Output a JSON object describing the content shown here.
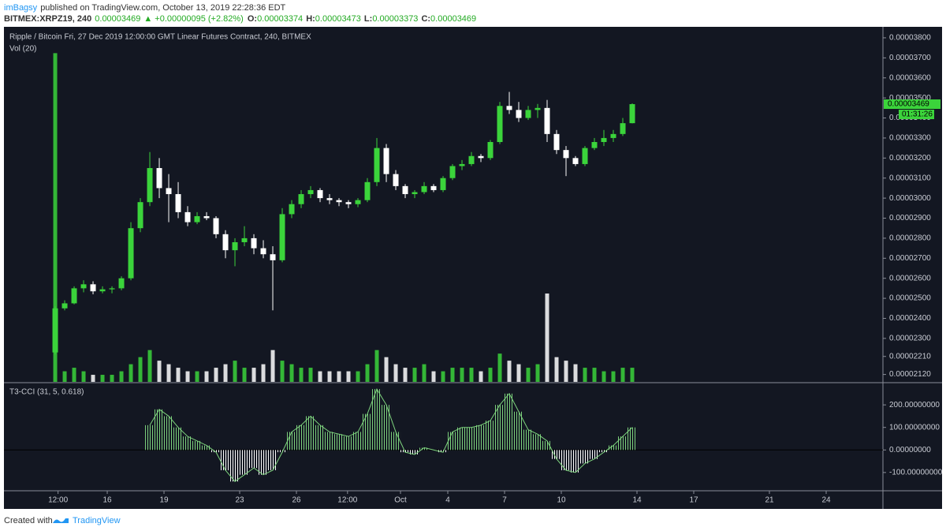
{
  "header": {
    "user": "imBagsy",
    "published": "published on TradingView.com, October 13, 2019 22:28:36 EDT",
    "symbol": "BITMEX:XRPZ19, 240",
    "last": "0.00003469",
    "change": "+0.00000095 (+2.82%)",
    "ohlc": [
      {
        "label": "O:",
        "value": "0.00003374"
      },
      {
        "label": "H:",
        "value": "0.00003473"
      },
      {
        "label": "L:",
        "value": "0.00003373"
      },
      {
        "label": "C:",
        "value": "0.00003469"
      }
    ]
  },
  "chart_data": [
    {
      "type": "candlestick",
      "title": "Ripple / Bitcoin Fri, 27 Dec 2019 12:00:00 GMT Linear Futures Contract, 240, BITMEX",
      "volume_label": "Vol (20)",
      "last_price_label": "0.00003469",
      "countdown_label": "01:31:26",
      "up_color": "#3bd43b",
      "down_color": "#ffffff",
      "x": [
        13.25,
        13.75,
        14.25,
        14.75,
        15.25,
        15.75,
        16.25,
        16.75,
        17.25,
        17.75,
        18.25,
        18.75,
        19.25,
        19.75,
        20.25,
        20.75,
        21.25,
        21.75,
        22.25,
        22.75,
        23.25,
        23.75,
        24.25,
        24.75,
        25.25,
        25.75,
        26.25,
        26.75,
        27.25,
        27.75,
        28.25,
        28.75,
        29.25,
        29.75,
        30.25,
        30.75,
        31.25,
        31.75,
        32.25,
        32.75,
        33.25,
        33.75,
        34.25,
        34.75,
        35.25,
        35.75,
        36.25,
        36.75,
        37.25,
        37.75,
        38.25,
        38.75,
        39.25,
        39.75,
        40.25,
        40.75,
        41.25,
        41.75,
        42.25,
        42.75,
        43.25,
        43.75
      ],
      "open": [
        2.23e-05,
        2.45e-05,
        2.475e-05,
        2.55e-05,
        2.57e-05,
        2.535e-05,
        2.545e-05,
        2.55e-05,
        2.6e-05,
        2.85e-05,
        2.98e-05,
        3.15e-05,
        3.05e-05,
        3.02e-05,
        2.93e-05,
        2.88e-05,
        2.91e-05,
        2.9e-05,
        2.82e-05,
        2.74e-05,
        2.78e-05,
        2.8e-05,
        2.75e-05,
        2.72e-05,
        2.69e-05,
        2.92e-05,
        2.97e-05,
        3.02e-05,
        3.04e-05,
        3e-05,
        2.99e-05,
        2.98e-05,
        2.97e-05,
        2.99e-05,
        3.08e-05,
        3.25e-05,
        3.12e-05,
        3.06e-05,
        3.02e-05,
        3.03e-05,
        3.06e-05,
        3.04e-05,
        3.1e-05,
        3.16e-05,
        3.17e-05,
        3.21e-05,
        3.2e-05,
        3.28e-05,
        3.46e-05,
        3.44e-05,
        3.4e-05,
        3.44e-05,
        3.45e-05,
        3.32e-05,
        3.24e-05,
        3.2e-05,
        3.17e-05,
        3.25e-05,
        3.28e-05,
        3.3e-05,
        3.32e-05,
        3.374e-05
      ],
      "high": [
        2.46e-05,
        2.49e-05,
        2.56e-05,
        2.59e-05,
        2.585e-05,
        2.56e-05,
        2.56e-05,
        2.61e-05,
        2.88e-05,
        3e-05,
        3.23e-05,
        3.2e-05,
        3.12e-05,
        3.08e-05,
        2.96e-05,
        2.93e-05,
        2.93e-05,
        2.91e-05,
        2.84e-05,
        2.8e-05,
        2.86e-05,
        2.82e-05,
        2.79e-05,
        2.76e-05,
        2.95e-05,
        2.99e-05,
        3.04e-05,
        3.06e-05,
        3.05e-05,
        3.02e-05,
        3e-05,
        2.99e-05,
        3e-05,
        3.1e-05,
        3.3e-05,
        3.27e-05,
        3.14e-05,
        3.07e-05,
        3.04e-05,
        3.08e-05,
        3.07e-05,
        3.11e-05,
        3.17e-05,
        3.19e-05,
        3.23e-05,
        3.22e-05,
        3.29e-05,
        3.48e-05,
        3.53e-05,
        3.48e-05,
        3.46e-05,
        3.47e-05,
        3.49e-05,
        3.34e-05,
        3.26e-05,
        3.21e-05,
        3.26e-05,
        3.3e-05,
        3.34e-05,
        3.34e-05,
        3.4e-05,
        3.473e-05
      ],
      "low": [
        2.22e-05,
        2.44e-05,
        2.47e-05,
        2.53e-05,
        2.52e-05,
        2.525e-05,
        2.525e-05,
        2.54e-05,
        2.59e-05,
        2.83e-05,
        2.96e-05,
        3e-05,
        2.88e-05,
        2.9e-05,
        2.86e-05,
        2.87e-05,
        2.89e-05,
        2.8e-05,
        2.7e-05,
        2.66e-05,
        2.76e-05,
        2.72e-05,
        2.7e-05,
        2.44e-05,
        2.68e-05,
        2.9e-05,
        2.95e-05,
        3e-05,
        2.98e-05,
        2.97e-05,
        2.96e-05,
        2.95e-05,
        2.955e-05,
        2.98e-05,
        3.06e-05,
        3.08e-05,
        3.04e-05,
        3e-05,
        3e-05,
        3.02e-05,
        3.03e-05,
        3.03e-05,
        3.09e-05,
        3.14e-05,
        3.16e-05,
        3.18e-05,
        3.19e-05,
        3.27e-05,
        3.42e-05,
        3.38e-05,
        3.39e-05,
        3.4e-05,
        3.28e-05,
        3.22e-05,
        3.11e-05,
        3.16e-05,
        3.16e-05,
        3.24e-05,
        3.26e-05,
        3.28e-05,
        3.31e-05,
        3.373e-05
      ],
      "close": [
        2.45e-05,
        2.475e-05,
        2.55e-05,
        2.57e-05,
        2.535e-05,
        2.545e-05,
        2.55e-05,
        2.6e-05,
        2.85e-05,
        2.98e-05,
        3.15e-05,
        3.05e-05,
        3.02e-05,
        2.93e-05,
        2.88e-05,
        2.91e-05,
        2.9e-05,
        2.82e-05,
        2.74e-05,
        2.78e-05,
        2.8e-05,
        2.75e-05,
        2.72e-05,
        2.69e-05,
        2.92e-05,
        2.97e-05,
        3.02e-05,
        3.04e-05,
        3e-05,
        2.99e-05,
        2.98e-05,
        2.97e-05,
        2.99e-05,
        3.08e-05,
        3.25e-05,
        3.12e-05,
        3.06e-05,
        3.02e-05,
        3.03e-05,
        3.06e-05,
        3.04e-05,
        3.1e-05,
        3.16e-05,
        3.17e-05,
        3.21e-05,
        3.2e-05,
        3.28e-05,
        3.46e-05,
        3.44e-05,
        3.4e-05,
        3.44e-05,
        3.45e-05,
        3.32e-05,
        3.24e-05,
        3.2e-05,
        3.17e-05,
        3.25e-05,
        3.28e-05,
        3.3e-05,
        3.32e-05,
        3.374e-05,
        3.469e-05
      ],
      "volume": [
        93,
        3,
        4,
        3,
        2,
        2,
        2,
        3,
        5,
        7,
        9,
        6,
        5,
        4,
        3,
        3,
        3,
        4,
        5,
        6,
        4,
        4,
        5,
        9,
        6,
        5,
        4,
        4,
        3,
        3,
        3,
        3,
        3,
        5,
        9,
        7,
        5,
        4,
        4,
        5,
        3,
        3,
        4,
        4,
        4,
        3,
        4,
        8,
        6,
        5,
        4,
        5,
        25,
        7,
        6,
        5,
        4,
        4,
        3,
        3,
        4,
        4
      ],
      "vlim": [
        0,
        100
      ],
      "xlim": [
        10.54,
        57.0
      ],
      "xticks": [
        {
          "value": 13.4,
          "label": "12:00"
        },
        16,
        19,
        23,
        26,
        {
          "value": 28.7,
          "label": "12:00"
        },
        {
          "value": 31.5,
          "label": "Oct"
        },
        {
          "value": 34,
          "label": "4"
        },
        {
          "value": 37,
          "label": "7"
        },
        {
          "value": 40,
          "label": "10"
        },
        {
          "value": 44,
          "label": "14"
        },
        {
          "value": 47,
          "label": "17"
        },
        {
          "value": 51,
          "label": "21"
        },
        {
          "value": 54,
          "label": "24"
        }
      ],
      "ylim": [
        2.083e-05,
        3.847e-05
      ],
      "yticks": [
        {
          "value": 3.8e-05,
          "label": "0.00003800"
        },
        {
          "value": 3.7e-05,
          "label": "0.00003700"
        },
        {
          "value": 3.6e-05,
          "label": "0.00003600"
        },
        {
          "value": 3.5e-05,
          "label": "0.00003500"
        },
        {
          "value": 3.4e-05,
          "label": "0.00003400"
        },
        {
          "value": 3.3e-05,
          "label": "0.00003300"
        },
        {
          "value": 3.2e-05,
          "label": "0.00003200"
        },
        {
          "value": 3.1e-05,
          "label": "0.00003100"
        },
        {
          "value": 3e-05,
          "label": "0.00003000"
        },
        {
          "value": 2.9e-05,
          "label": "0.00002900"
        },
        {
          "value": 2.8e-05,
          "label": "0.00002800"
        },
        {
          "value": 2.7e-05,
          "label": "0.00002700"
        },
        {
          "value": 2.6e-05,
          "label": "0.00002600"
        },
        {
          "value": 2.5e-05,
          "label": "0.00002500"
        },
        {
          "value": 2.4e-05,
          "label": "0.00002400"
        },
        {
          "value": 2.3e-05,
          "label": "0.00002300"
        },
        {
          "value": 2.21e-05,
          "label": "0.00002210"
        },
        {
          "value": 2.12e-05,
          "label": "0.00002120"
        }
      ]
    },
    {
      "type": "oscillator",
      "title": "T3-CCI (31, 5, 0.618)",
      "up_color": "#7ed37e",
      "down_color": "#ffffff",
      "values": [
        null,
        null,
        null,
        null,
        null,
        null,
        null,
        null,
        null,
        null,
        110,
        180,
        150,
        100,
        60,
        40,
        20,
        -10,
        -90,
        -140,
        -110,
        -80,
        -110,
        -90,
        -10,
        80,
        110,
        150,
        110,
        80,
        70,
        60,
        80,
        160,
        270,
        200,
        80,
        -10,
        -20,
        10,
        0,
        -10,
        80,
        100,
        100,
        110,
        130,
        200,
        250,
        170,
        90,
        70,
        40,
        -40,
        -90,
        -100,
        -60,
        -40,
        -10,
        20,
        60,
        100
      ],
      "ylim": [
        -181,
        295
      ],
      "yticks": [
        {
          "value": 200,
          "label": "200.00000000"
        },
        {
          "value": 100,
          "label": "100.00000000"
        },
        {
          "value": 0,
          "label": "0.00000000"
        },
        {
          "value": -100,
          "label": "-100.00000000"
        }
      ]
    }
  ],
  "footer": {
    "created": "Created with",
    "brand": "TradingView"
  }
}
